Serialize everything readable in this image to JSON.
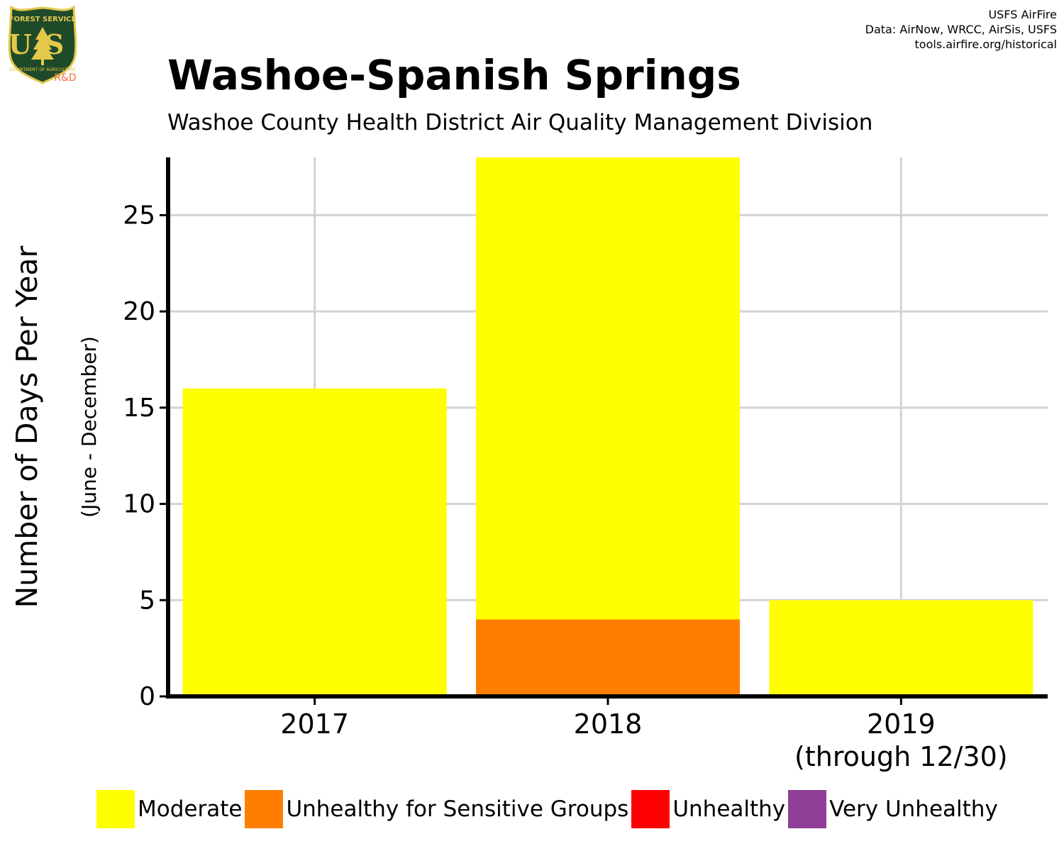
{
  "logo": {
    "top_text": "FOREST SERVICE",
    "letters": "US",
    "bottom_text": "DEPARTMENT OF AGRICULTURE",
    "rd_label": "R&D"
  },
  "credits": {
    "line1": "USFS AirFire",
    "line2": "Data: AirNow, WRCC, AirSis, USFS",
    "line3": "tools.airfire.org/historical"
  },
  "colors": {
    "moderate": "#FFFF00",
    "usg": "#FF7E00",
    "unhealthy": "#FF0000",
    "very_unhealthy": "#8F3F97",
    "grid": "#D3D3D3",
    "axis": "#000000",
    "logo_green": "#1F4A2A",
    "logo_gold": "#E3C84A",
    "rd_color": "#F0703C"
  },
  "chart_data": {
    "type": "bar",
    "stacked": true,
    "title": "Washoe-Spanish Springs",
    "subtitle": "Washoe County Health District Air Quality Management Division",
    "ylabel": "Number of Days Per Year",
    "ylabel2": "(June - December)",
    "categories": [
      "2017",
      "2018",
      "2019"
    ],
    "category_sublabels": [
      "",
      "",
      "(through 12/30)"
    ],
    "yticks": [
      0,
      5,
      10,
      15,
      20,
      25
    ],
    "ylim": [
      0,
      28
    ],
    "grid": true,
    "legend_position": "bottom",
    "series": [
      {
        "name": "Unhealthy for Sensitive Groups",
        "color_key": "usg",
        "values": [
          0,
          4,
          0
        ]
      },
      {
        "name": "Moderate",
        "color_key": "moderate",
        "values": [
          16,
          24,
          5
        ]
      },
      {
        "name": "Unhealthy",
        "color_key": "unhealthy",
        "values": [
          0,
          0,
          0
        ]
      },
      {
        "name": "Very Unhealthy",
        "color_key": "very_unhealthy",
        "values": [
          0,
          0,
          0
        ]
      }
    ]
  },
  "legend": [
    {
      "label": "Moderate",
      "color_key": "moderate"
    },
    {
      "label": "Unhealthy for Sensitive Groups",
      "color_key": "usg"
    },
    {
      "label": "Unhealthy",
      "color_key": "unhealthy"
    },
    {
      "label": "Very Unhealthy",
      "color_key": "very_unhealthy"
    }
  ]
}
